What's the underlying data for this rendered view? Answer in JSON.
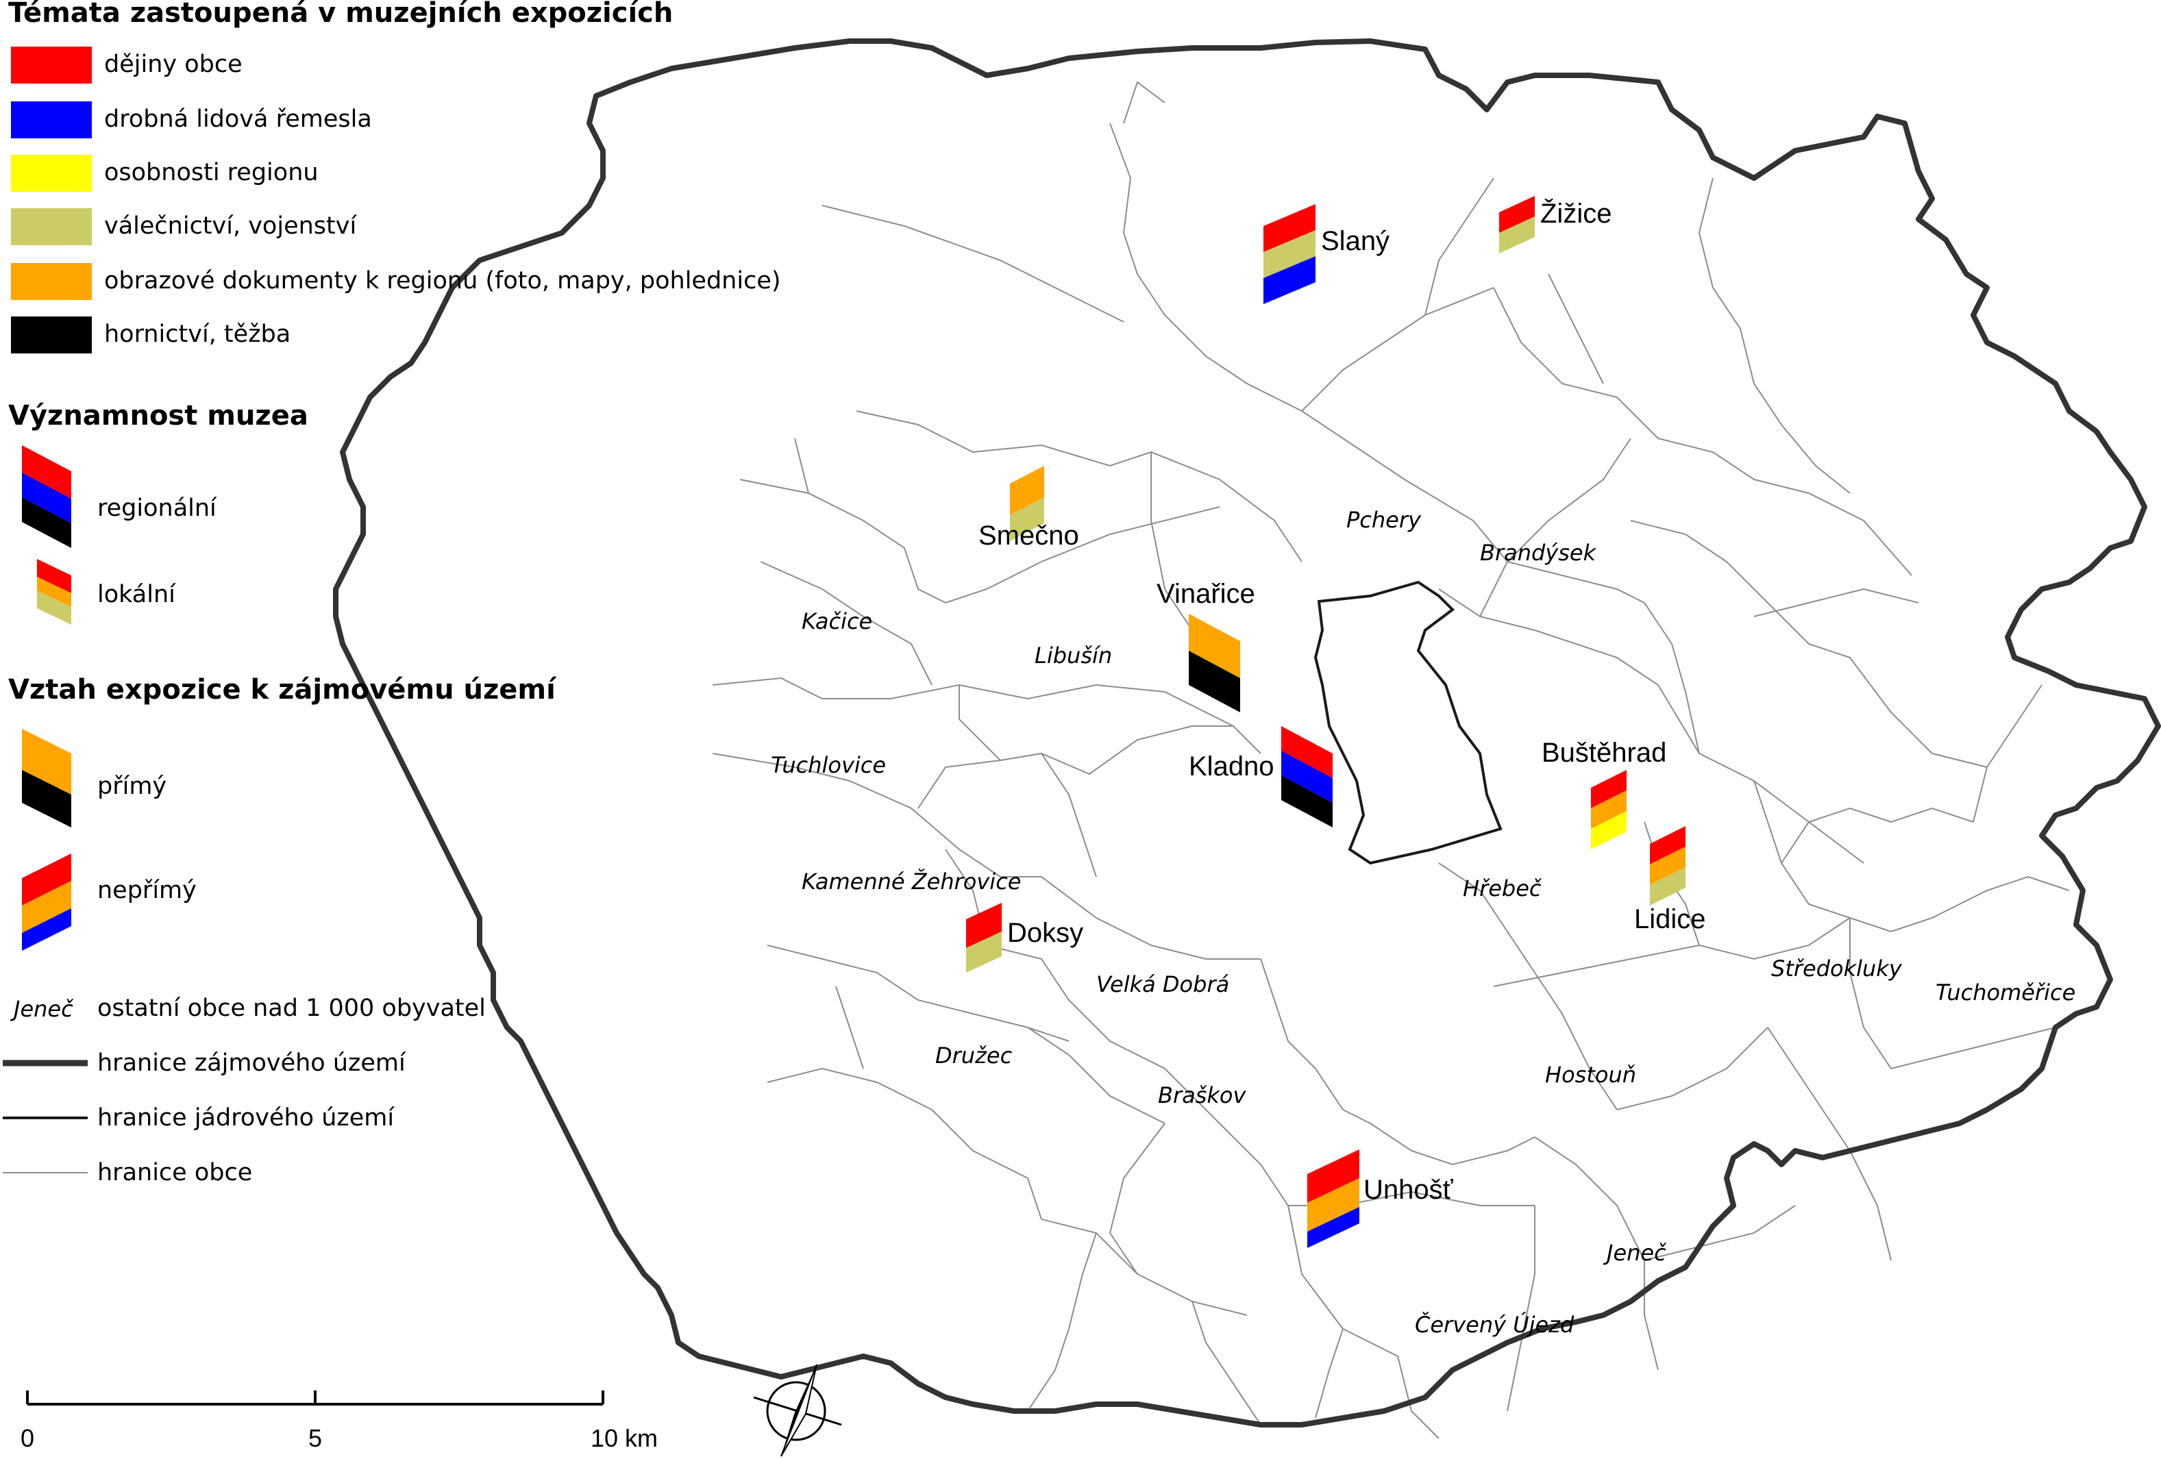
{
  "legend": {
    "themes": {
      "heading": "Témata zastoupená v muzejních expozicích",
      "items": [
        {
          "label": "dějiny obce",
          "color": "#ff0000"
        },
        {
          "label": "drobná lidová řemesla",
          "color": "#0000ff"
        },
        {
          "label": "osobnosti regionu",
          "color": "#ffff00"
        },
        {
          "label": "válečnictví, vojenství",
          "color": "#cccc66"
        },
        {
          "label": "obrazové dokumenty k regionu (foto, mapy, pohlednice)",
          "color": "#ffa500"
        },
        {
          "label": "hornictví, těžba",
          "color": "#000000"
        }
      ]
    },
    "significance": {
      "heading": "Významnost muzea",
      "regional": "regionální",
      "local": "lokální"
    },
    "relation": {
      "heading": "Vztah expozice k zájmovému území",
      "direct": "přímý",
      "indirect": "nepřímý"
    },
    "other": {
      "sample_name": "Jeneč",
      "municipalities": "ostatní obce nad 1 000 obyvatel",
      "study_area": "hranice zájmového území",
      "core_area": "hranice jádrového území",
      "municipality_border": "hranice obce"
    }
  },
  "museums": [
    {
      "name": "Slaný",
      "themes": [
        "red",
        "khaki",
        "blue"
      ]
    },
    {
      "name": "Žižice",
      "themes": [
        "red",
        "khaki"
      ]
    },
    {
      "name": "Smečno",
      "themes": [
        "orange",
        "khaki"
      ]
    },
    {
      "name": "Vinařice",
      "themes": [
        "orange",
        "black"
      ]
    },
    {
      "name": "Kladno",
      "themes": [
        "red",
        "blue",
        "black"
      ]
    },
    {
      "name": "Buštěhrad",
      "themes": [
        "red",
        "orange",
        "yellow"
      ]
    },
    {
      "name": "Lidice",
      "themes": [
        "red",
        "orange",
        "khaki"
      ]
    },
    {
      "name": "Doksy",
      "themes": [
        "red",
        "khaki"
      ]
    },
    {
      "name": "Unhošť",
      "themes": [
        "red",
        "orange",
        "blue"
      ]
    }
  ],
  "municipalities": [
    "Pchery",
    "Brandýsek",
    "Kačice",
    "Libušín",
    "Tuchlovice",
    "Kamenné Žehrovice",
    "Hřebeč",
    "Velká Dobrá",
    "Středokluky",
    "Tuchoměřice",
    "Družec",
    "Hostouň",
    "Braškov",
    "Jeneč",
    "Červený Újezd"
  ],
  "scale_bar": {
    "labels": [
      "0",
      "5",
      "10 km"
    ]
  },
  "icons": {
    "north_arrow": "north-arrow-icon"
  }
}
